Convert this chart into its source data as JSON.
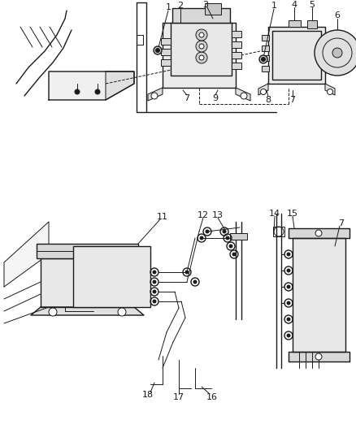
{
  "bg_color": "#ffffff",
  "line_color": "#1a1a1a",
  "fig_width": 4.38,
  "fig_height": 5.33,
  "dpi": 100,
  "gray_light": "#d8d8d8",
  "gray_med": "#bbbbbb",
  "gray_dark": "#888888"
}
